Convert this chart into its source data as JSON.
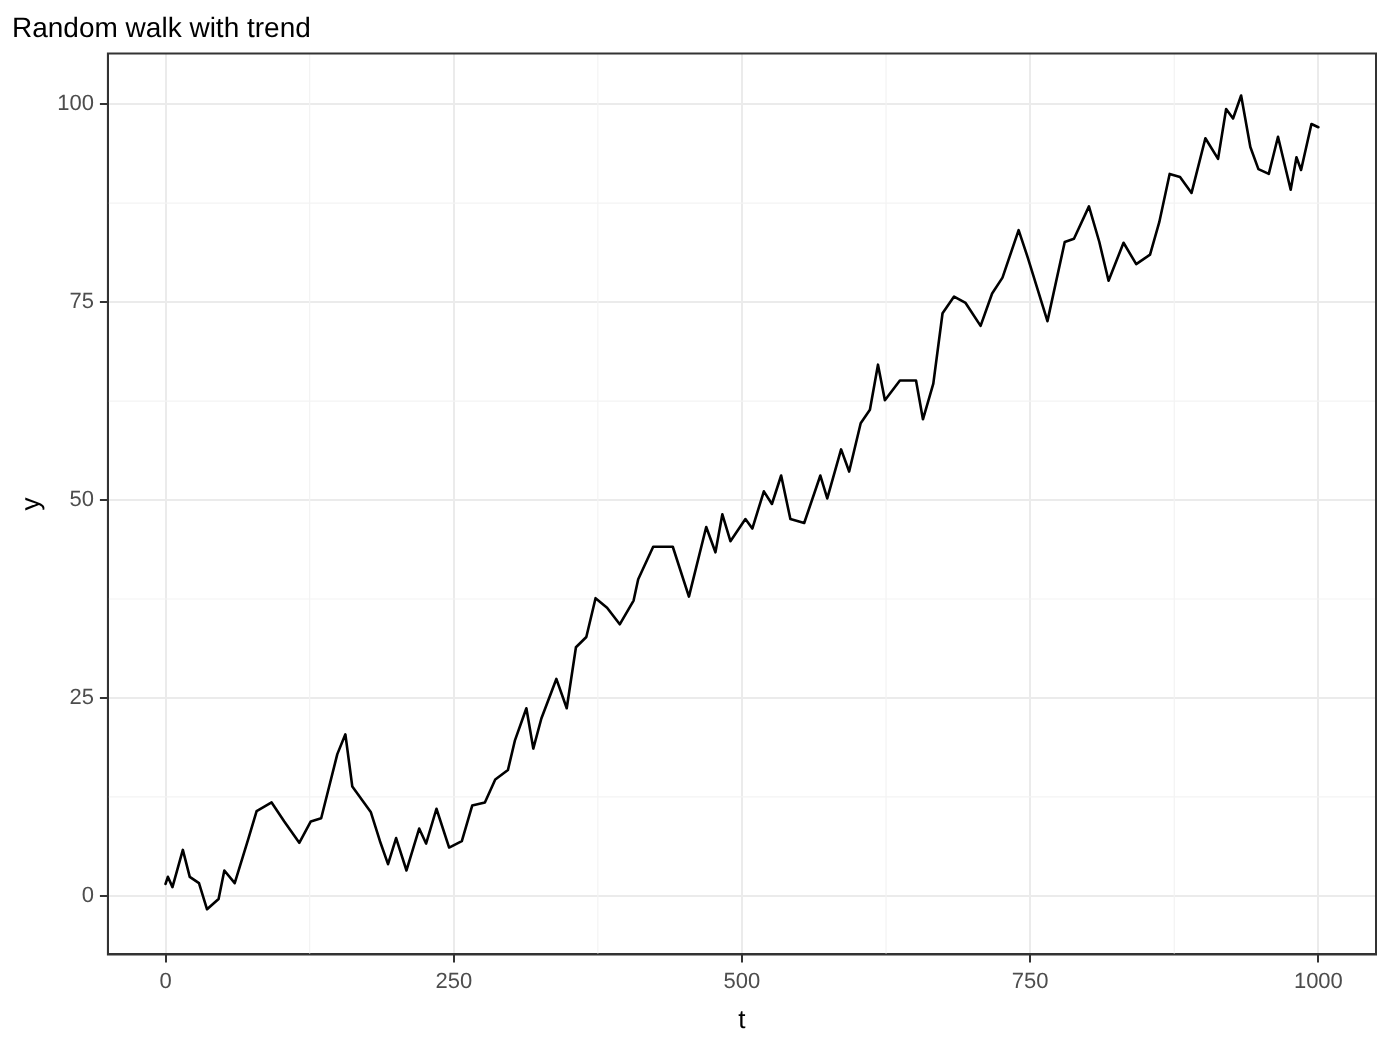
{
  "chart_data": {
    "type": "line",
    "title": "Random walk with trend",
    "xlabel": "t",
    "ylabel": "y",
    "x": [
      0,
      2,
      6,
      15,
      21,
      29,
      36,
      46,
      51,
      60,
      72,
      79,
      92,
      103,
      116,
      126,
      135,
      149,
      156,
      162,
      178,
      186,
      193,
      200,
      209,
      220,
      226,
      235,
      246,
      257,
      266,
      277,
      286,
      297,
      303,
      313,
      319,
      326,
      339,
      348,
      356,
      365,
      373,
      383,
      394,
      406,
      410,
      423,
      440,
      454,
      469,
      477,
      483,
      490,
      503,
      509,
      519,
      526,
      534,
      542,
      554,
      568,
      574,
      586,
      593,
      603,
      611,
      618,
      624,
      637,
      651,
      657,
      666,
      674,
      684,
      694,
      707,
      717,
      726,
      740,
      748,
      765,
      780,
      788,
      801,
      810,
      818,
      831,
      842,
      854,
      862,
      871,
      880,
      890,
      902,
      913,
      920,
      926,
      933,
      941,
      948,
      957,
      965,
      976,
      981,
      985,
      994,
      1000
    ],
    "series": [
      {
        "color": "#000000",
        "values": [
          1.5,
          2.4,
          1.1,
          5.8,
          2.4,
          1.6,
          -1.7,
          -0.4,
          3.2,
          1.6,
          7.3,
          10.7,
          11.8,
          9.4,
          6.7,
          9.4,
          9.8,
          17.9,
          20.4,
          13.8,
          10.6,
          6.9,
          4.0,
          7.3,
          3.2,
          8.5,
          6.6,
          11,
          6.1,
          6.9,
          11.4,
          11.8,
          14.7,
          15.9,
          19.6,
          23.7,
          18.6,
          22.4,
          27.4,
          23.7,
          31.4,
          32.7,
          37.6,
          36.4,
          34.3,
          37.3,
          40,
          44.1,
          44.1,
          37.8,
          46.6,
          43.4,
          48.2,
          44.8,
          47.6,
          46.4,
          51.1,
          49.5,
          53.1,
          47.6,
          47.1,
          53.1,
          50.2,
          56.4,
          53.6,
          59.7,
          61.4,
          67.1,
          62.6,
          65.1,
          65.1,
          60.2,
          64.7,
          73.6,
          75.7,
          74.9,
          72,
          76.1,
          78.1,
          84.1,
          80.6,
          72.6,
          82.6,
          83,
          87.1,
          82.6,
          77.7,
          82.5,
          79.8,
          81,
          85.1,
          91.2,
          90.8,
          88.8,
          95.7,
          93.1,
          99.4,
          98.2,
          101.1,
          94.6,
          91.8,
          91.2,
          95.9,
          89.2,
          93.3,
          91.7,
          97.5,
          97.1
        ]
      }
    ],
    "xlim": [
      -50,
      1050
    ],
    "xticks": [
      0,
      250,
      500,
      750,
      1000
    ],
    "ylim": [
      -7.4,
      106.4
    ],
    "yticks": [
      0,
      25,
      50,
      75,
      100
    ],
    "grid": true,
    "marker": "none",
    "line_style": "solid"
  }
}
